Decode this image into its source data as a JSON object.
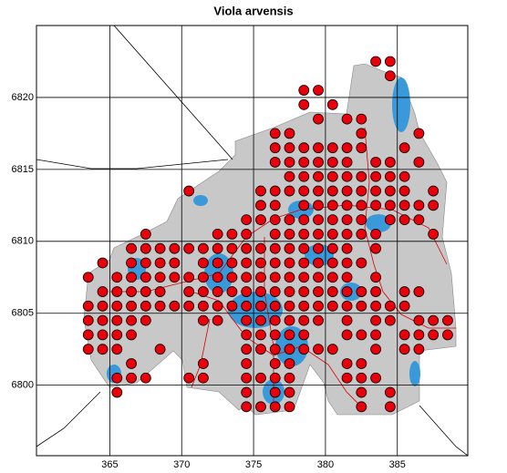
{
  "chart_data": {
    "type": "scatter",
    "title": "Viola arvensis",
    "xlim": [
      359.9,
      389.9
    ],
    "ylim": [
      6795.1,
      6825
    ],
    "xticks": [
      365,
      370,
      375,
      380,
      385
    ],
    "yticks": [
      6800,
      6805,
      6810,
      6815,
      6820
    ],
    "grid": true,
    "color": "#e8000b",
    "x": [
      383.5,
      384.5,
      384.5,
      378.5,
      379.5,
      378.5,
      380.5,
      379.5,
      381.5,
      382.5,
      376.5,
      377.5,
      382.5,
      386.5,
      376.5,
      377.5,
      378.5,
      379.5,
      380.5,
      381.5,
      382.5,
      385.5,
      376.5,
      377.5,
      378.5,
      379.5,
      380.5,
      381.5,
      383.5,
      384.5,
      386.5,
      377.5,
      378.5,
      379.5,
      380.5,
      381.5,
      382.5,
      383.5,
      384.5,
      385.5,
      370.5,
      375.5,
      376.5,
      377.5,
      378.5,
      379.5,
      380.5,
      381.5,
      382.5,
      383.5,
      384.5,
      385.5,
      387.5,
      375.5,
      376.5,
      378.5,
      379.5,
      380.5,
      381.5,
      382.5,
      383.5,
      384.5,
      385.5,
      386.5,
      387.5,
      374.5,
      375.5,
      376.5,
      377.5,
      378.5,
      379.5,
      380.5,
      381.5,
      382.5,
      384.5,
      385.5,
      386.5,
      367.5,
      372.5,
      373.5,
      374.5,
      376.5,
      377.5,
      378.5,
      379.5,
      380.5,
      381.5,
      382.5,
      383.5,
      387.5,
      366.5,
      367.5,
      368.5,
      369.5,
      370.5,
      371.5,
      372.5,
      373.5,
      374.5,
      375.5,
      376.5,
      377.5,
      378.5,
      379.5,
      380.5,
      381.5,
      383.5,
      364.5,
      366.5,
      367.5,
      368.5,
      369.5,
      371.5,
      372.5,
      373.5,
      374.5,
      375.5,
      376.5,
      377.5,
      378.5,
      379.5,
      380.5,
      381.5,
      382.5,
      363.5,
      365.5,
      366.5,
      367.5,
      368.5,
      369.5,
      370.5,
      371.5,
      372.5,
      373.5,
      374.5,
      375.5,
      376.5,
      377.5,
      378.5,
      379.5,
      380.5,
      381.5,
      383.5,
      364.5,
      365.5,
      366.5,
      367.5,
      368.5,
      370.5,
      371.5,
      372.5,
      373.5,
      374.5,
      375.5,
      376.5,
      377.5,
      378.5,
      379.5,
      380.5,
      381.5,
      382.5,
      383.5,
      385.5,
      386.5,
      363.5,
      364.5,
      365.5,
      366.5,
      367.5,
      368.5,
      369.5,
      370.5,
      371.5,
      372.5,
      373.5,
      374.5,
      375.5,
      376.5,
      377.5,
      378.5,
      379.5,
      380.5,
      381.5,
      382.5,
      383.5,
      384.5,
      385.5,
      363.5,
      364.5,
      365.5,
      366.5,
      367.5,
      371.5,
      372.5,
      374.5,
      375.5,
      376.5,
      377.5,
      378.5,
      379.5,
      381.5,
      383.5,
      384.5,
      386.5,
      387.5,
      388.5,
      363.5,
      364.5,
      365.5,
      366.5,
      374.5,
      375.5,
      376.5,
      377.5,
      378.5,
      381.5,
      382.5,
      383.5,
      385.5,
      386.5,
      387.5,
      388.5,
      363.5,
      364.5,
      365.5,
      368.5,
      374.5,
      375.5,
      376.5,
      377.5,
      378.5,
      379.5,
      380.5,
      383.5,
      385.5,
      386.5,
      366.5,
      371.5,
      374.5,
      376.5,
      377.5,
      381.5,
      382.5,
      365.5,
      366.5,
      367.5,
      370.5,
      371.5,
      374.5,
      375.5,
      376.5,
      377.5,
      381.5,
      382.5,
      383.5,
      365.5,
      374.5,
      376.5,
      377.5,
      382.5,
      384.5,
      374.5,
      375.5,
      376.5,
      377.5,
      382.5,
      384.5
    ],
    "y": [
      6822.5,
      6822.5,
      6821.5,
      6820.5,
      6820.5,
      6819.5,
      6819.5,
      6818.5,
      6818.5,
      6818.5,
      6817.5,
      6817.5,
      6817.5,
      6817.5,
      6816.5,
      6816.5,
      6816.5,
      6816.5,
      6816.5,
      6816.5,
      6816.5,
      6816.5,
      6815.5,
      6815.5,
      6815.5,
      6815.5,
      6815.5,
      6815.5,
      6815.5,
      6815.5,
      6815.5,
      6814.5,
      6814.5,
      6814.5,
      6814.5,
      6814.5,
      6814.5,
      6814.5,
      6814.5,
      6814.5,
      6813.5,
      6813.5,
      6813.5,
      6813.5,
      6813.5,
      6813.5,
      6813.5,
      6813.5,
      6813.5,
      6813.5,
      6813.5,
      6813.5,
      6813.5,
      6812.5,
      6812.5,
      6812.5,
      6812.5,
      6812.5,
      6812.5,
      6812.5,
      6812.5,
      6812.5,
      6812.5,
      6812.5,
      6812.5,
      6811.5,
      6811.5,
      6811.5,
      6811.5,
      6811.5,
      6811.5,
      6811.5,
      6811.5,
      6811.5,
      6811.5,
      6811.5,
      6811.5,
      6810.5,
      6810.5,
      6810.5,
      6810.5,
      6810.5,
      6810.5,
      6810.5,
      6810.5,
      6810.5,
      6810.5,
      6810.5,
      6810.5,
      6810.5,
      6809.5,
      6809.5,
      6809.5,
      6809.5,
      6809.5,
      6809.5,
      6809.5,
      6809.5,
      6809.5,
      6809.5,
      6809.5,
      6809.5,
      6809.5,
      6809.5,
      6809.5,
      6809.5,
      6809.5,
      6808.5,
      6808.5,
      6808.5,
      6808.5,
      6808.5,
      6808.5,
      6808.5,
      6808.5,
      6808.5,
      6808.5,
      6808.5,
      6808.5,
      6808.5,
      6808.5,
      6808.5,
      6808.5,
      6808.5,
      6807.5,
      6807.5,
      6807.5,
      6807.5,
      6807.5,
      6807.5,
      6807.5,
      6807.5,
      6807.5,
      6807.5,
      6807.5,
      6807.5,
      6807.5,
      6807.5,
      6807.5,
      6807.5,
      6807.5,
      6807.5,
      6807.5,
      6806.5,
      6806.5,
      6806.5,
      6806.5,
      6806.5,
      6806.5,
      6806.5,
      6806.5,
      6806.5,
      6806.5,
      6806.5,
      6806.5,
      6806.5,
      6806.5,
      6806.5,
      6806.5,
      6806.5,
      6806.5,
      6806.5,
      6806.5,
      6806.5,
      6805.5,
      6805.5,
      6805.5,
      6805.5,
      6805.5,
      6805.5,
      6805.5,
      6805.5,
      6805.5,
      6805.5,
      6805.5,
      6805.5,
      6805.5,
      6805.5,
      6805.5,
      6805.5,
      6805.5,
      6805.5,
      6805.5,
      6805.5,
      6805.5,
      6805.5,
      6805.5,
      6804.5,
      6804.5,
      6804.5,
      6804.5,
      6804.5,
      6804.5,
      6804.5,
      6804.5,
      6804.5,
      6804.5,
      6804.5,
      6804.5,
      6804.5,
      6804.5,
      6804.5,
      6804.5,
      6804.5,
      6804.5,
      6804.5,
      6803.5,
      6803.5,
      6803.5,
      6803.5,
      6803.5,
      6803.5,
      6803.5,
      6803.5,
      6803.5,
      6803.5,
      6803.5,
      6803.5,
      6803.5,
      6803.5,
      6803.5,
      6803.5,
      6802.5,
      6802.5,
      6802.5,
      6802.5,
      6802.5,
      6802.5,
      6802.5,
      6802.5,
      6802.5,
      6802.5,
      6802.5,
      6802.5,
      6802.5,
      6802.5,
      6801.5,
      6801.5,
      6801.5,
      6801.5,
      6801.5,
      6801.5,
      6801.5,
      6800.5,
      6800.5,
      6800.5,
      6800.5,
      6800.5,
      6800.5,
      6800.5,
      6800.5,
      6800.5,
      6800.5,
      6800.5,
      6800.5,
      6799.5,
      6799.5,
      6799.5,
      6799.5,
      6799.5,
      6799.5,
      6798.5,
      6798.5,
      6798.5,
      6798.5,
      6798.5,
      6798.5
    ]
  }
}
